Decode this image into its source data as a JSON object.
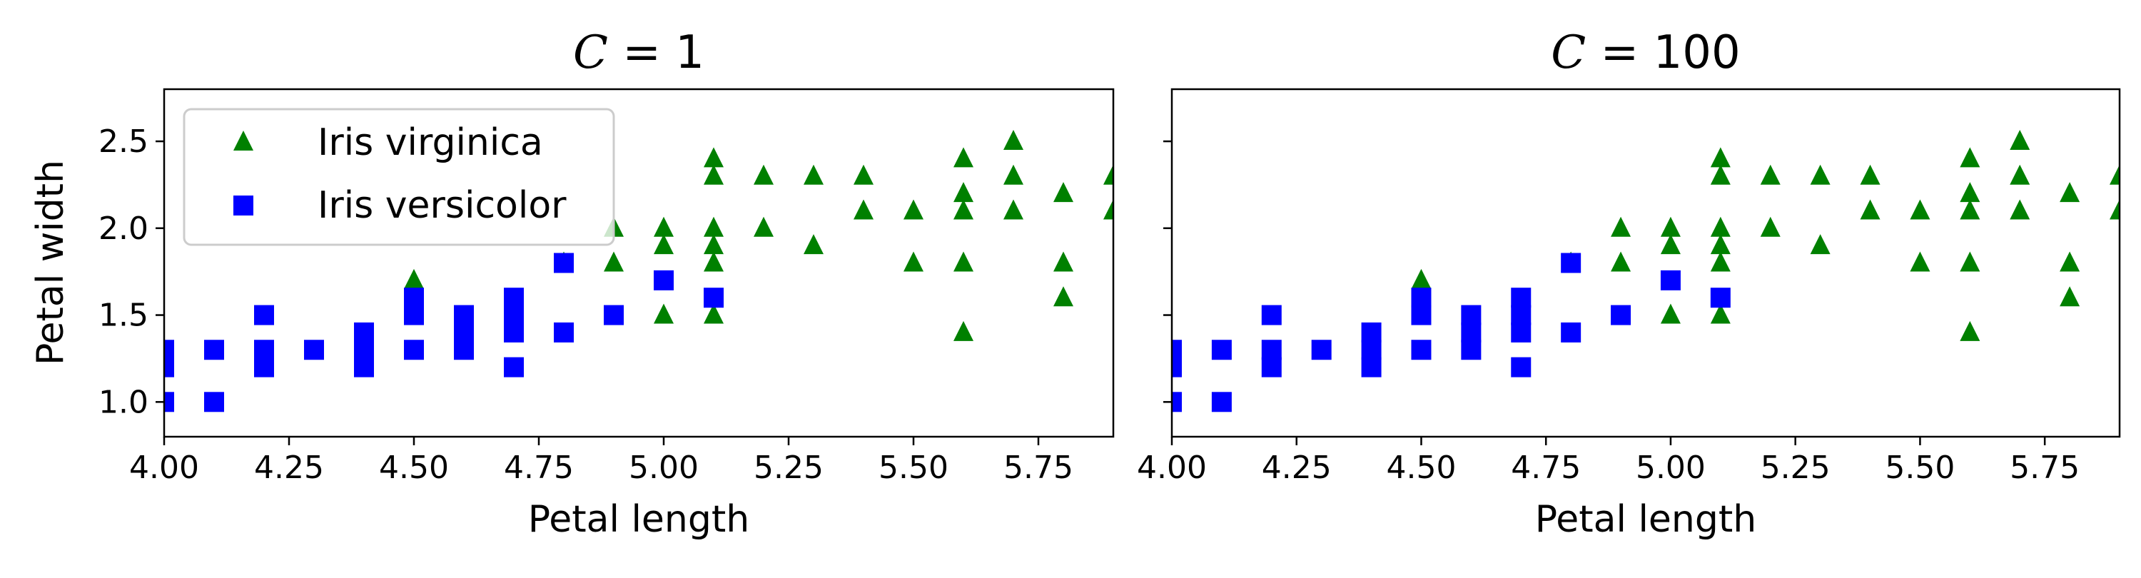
{
  "colors": {
    "virginica": "#008000",
    "versicolor": "#0000ff"
  },
  "chart_data": [
    {
      "type": "scatter",
      "title_var": "C",
      "title_rest": " = 1",
      "xlabel": "Petal length",
      "ylabel": "Petal width",
      "xlim": [
        4.0,
        5.9
      ],
      "ylim": [
        0.8,
        2.8
      ],
      "xticks": [
        "4.00",
        "4.25",
        "4.50",
        "4.75",
        "5.00",
        "5.25",
        "5.50",
        "5.75"
      ],
      "yticks": [
        "1.0",
        "1.5",
        "2.0",
        "2.5"
      ],
      "legend": {
        "position": "upper-left",
        "entries": [
          "Iris virginica",
          "Iris versicolor"
        ]
      },
      "series": [
        {
          "name": "Iris virginica",
          "marker": "triangle",
          "color": "#008000",
          "points": [
            [
              4.5,
              1.7
            ],
            [
              4.8,
              1.8
            ],
            [
              4.9,
              1.8
            ],
            [
              4.9,
              2.0
            ],
            [
              5.0,
              1.5
            ],
            [
              5.0,
              1.9
            ],
            [
              5.0,
              2.0
            ],
            [
              5.1,
              1.5
            ],
            [
              5.1,
              1.8
            ],
            [
              5.1,
              1.9
            ],
            [
              5.1,
              2.0
            ],
            [
              5.1,
              2.3
            ],
            [
              5.1,
              2.4
            ],
            [
              5.2,
              2.0
            ],
            [
              5.2,
              2.3
            ],
            [
              5.3,
              1.9
            ],
            [
              5.3,
              2.3
            ],
            [
              5.4,
              2.1
            ],
            [
              5.4,
              2.3
            ],
            [
              5.5,
              1.8
            ],
            [
              5.5,
              2.1
            ],
            [
              5.6,
              1.4
            ],
            [
              5.6,
              1.8
            ],
            [
              5.6,
              2.1
            ],
            [
              5.6,
              2.2
            ],
            [
              5.6,
              2.4
            ],
            [
              5.7,
              2.1
            ],
            [
              5.7,
              2.3
            ],
            [
              5.7,
              2.5
            ],
            [
              5.8,
              1.6
            ],
            [
              5.8,
              1.8
            ],
            [
              5.8,
              2.2
            ],
            [
              5.9,
              2.1
            ],
            [
              5.9,
              2.3
            ]
          ]
        },
        {
          "name": "Iris versicolor",
          "marker": "square",
          "color": "#0000ff",
          "points": [
            [
              4.0,
              1.0
            ],
            [
              4.0,
              1.2
            ],
            [
              4.0,
              1.3
            ],
            [
              4.1,
              1.0
            ],
            [
              4.1,
              1.3
            ],
            [
              4.2,
              1.2
            ],
            [
              4.2,
              1.3
            ],
            [
              4.2,
              1.5
            ],
            [
              4.3,
              1.3
            ],
            [
              4.4,
              1.2
            ],
            [
              4.4,
              1.3
            ],
            [
              4.4,
              1.4
            ],
            [
              4.5,
              1.3
            ],
            [
              4.5,
              1.5
            ],
            [
              4.5,
              1.6
            ],
            [
              4.6,
              1.3
            ],
            [
              4.6,
              1.4
            ],
            [
              4.6,
              1.5
            ],
            [
              4.7,
              1.2
            ],
            [
              4.7,
              1.4
            ],
            [
              4.7,
              1.5
            ],
            [
              4.7,
              1.6
            ],
            [
              4.8,
              1.4
            ],
            [
              4.8,
              1.8
            ],
            [
              4.9,
              1.5
            ],
            [
              5.0,
              1.7
            ],
            [
              5.1,
              1.6
            ]
          ]
        }
      ]
    },
    {
      "type": "scatter",
      "title_var": "C",
      "title_rest": " = 100",
      "xlabel": "Petal length",
      "ylabel": "",
      "xlim": [
        4.0,
        5.9
      ],
      "ylim": [
        0.8,
        2.8
      ],
      "xticks": [
        "4.00",
        "4.25",
        "4.50",
        "4.75",
        "5.00",
        "5.25",
        "5.50",
        "5.75"
      ],
      "yticks": [],
      "series": [
        {
          "marker": "triangle",
          "color": "#008000",
          "points": [
            [
              4.5,
              1.7
            ],
            [
              4.8,
              1.8
            ],
            [
              4.9,
              1.8
            ],
            [
              4.9,
              2.0
            ],
            [
              5.0,
              1.5
            ],
            [
              5.0,
              1.9
            ],
            [
              5.0,
              2.0
            ],
            [
              5.1,
              1.5
            ],
            [
              5.1,
              1.8
            ],
            [
              5.1,
              1.9
            ],
            [
              5.1,
              2.0
            ],
            [
              5.1,
              2.3
            ],
            [
              5.1,
              2.4
            ],
            [
              5.2,
              2.0
            ],
            [
              5.2,
              2.3
            ],
            [
              5.3,
              1.9
            ],
            [
              5.3,
              2.3
            ],
            [
              5.4,
              2.1
            ],
            [
              5.4,
              2.3
            ],
            [
              5.5,
              1.8
            ],
            [
              5.5,
              2.1
            ],
            [
              5.6,
              1.4
            ],
            [
              5.6,
              1.8
            ],
            [
              5.6,
              2.1
            ],
            [
              5.6,
              2.2
            ],
            [
              5.6,
              2.4
            ],
            [
              5.7,
              2.1
            ],
            [
              5.7,
              2.3
            ],
            [
              5.7,
              2.5
            ],
            [
              5.8,
              1.6
            ],
            [
              5.8,
              1.8
            ],
            [
              5.8,
              2.2
            ],
            [
              5.9,
              2.1
            ],
            [
              5.9,
              2.3
            ]
          ]
        },
        {
          "marker": "square",
          "color": "#0000ff",
          "points": [
            [
              4.0,
              1.0
            ],
            [
              4.0,
              1.2
            ],
            [
              4.0,
              1.3
            ],
            [
              4.1,
              1.0
            ],
            [
              4.1,
              1.3
            ],
            [
              4.2,
              1.2
            ],
            [
              4.2,
              1.3
            ],
            [
              4.2,
              1.5
            ],
            [
              4.3,
              1.3
            ],
            [
              4.4,
              1.2
            ],
            [
              4.4,
              1.3
            ],
            [
              4.4,
              1.4
            ],
            [
              4.5,
              1.3
            ],
            [
              4.5,
              1.5
            ],
            [
              4.5,
              1.6
            ],
            [
              4.6,
              1.3
            ],
            [
              4.6,
              1.4
            ],
            [
              4.6,
              1.5
            ],
            [
              4.7,
              1.2
            ],
            [
              4.7,
              1.4
            ],
            [
              4.7,
              1.5
            ],
            [
              4.7,
              1.6
            ],
            [
              4.8,
              1.4
            ],
            [
              4.8,
              1.8
            ],
            [
              4.9,
              1.5
            ],
            [
              5.0,
              1.7
            ],
            [
              5.1,
              1.6
            ]
          ]
        }
      ]
    }
  ]
}
